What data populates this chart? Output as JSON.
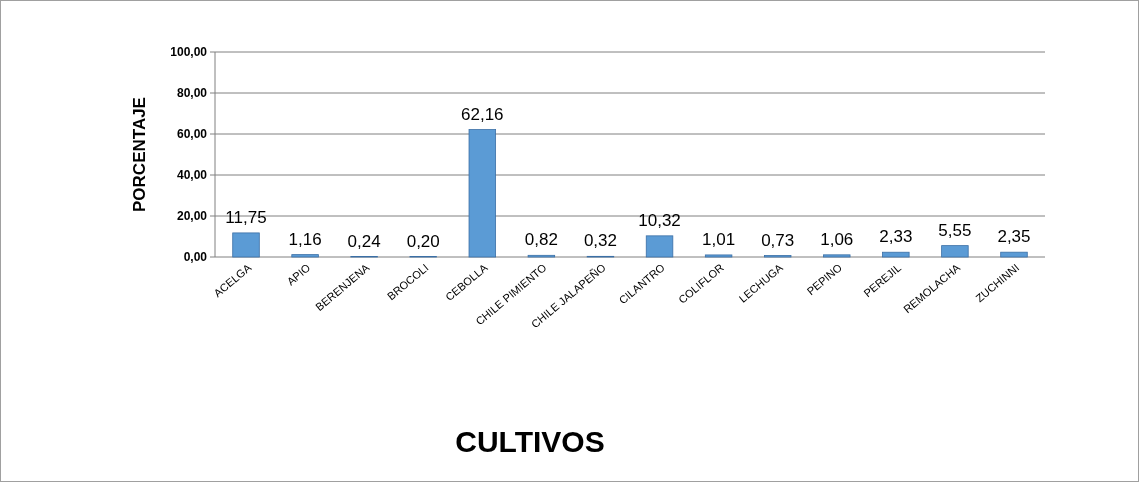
{
  "chart_data": {
    "type": "bar",
    "xlabel": "CULTIVOS",
    "ylabel": "PORCENTAJE",
    "categories": [
      "ACELGA",
      "APIO",
      "BERENJENA",
      "BROCOLI",
      "CEBOLLA",
      "CHILE PIMIENTO",
      "CHILE JALAPEÑO",
      "CILANTRO",
      "COLIFLOR",
      "LECHUGA",
      "PEPINO",
      "PEREJIL",
      "REMOLACHA",
      "ZUCHINNI"
    ],
    "values": [
      11.75,
      1.16,
      0.24,
      0.2,
      62.16,
      0.82,
      0.32,
      10.32,
      1.01,
      0.73,
      1.06,
      2.33,
      5.55,
      2.35
    ],
    "value_labels": [
      "11,75",
      "1,16",
      "0,24",
      "0,20",
      "62,16",
      "0,82",
      "0,32",
      "10,32",
      "1,01",
      "0,73",
      "1,06",
      "2,33",
      "5,55",
      "2,35"
    ],
    "color": "#5b9bd5",
    "ylim": [
      0,
      100
    ],
    "yticks": [
      {
        "value": 0,
        "label": "0,00"
      },
      {
        "value": 20,
        "label": "20,00"
      },
      {
        "value": 40,
        "label": "40,00"
      },
      {
        "value": 60,
        "label": "60,00"
      },
      {
        "value": 80,
        "label": "80,00"
      },
      {
        "value": 100,
        "label": "100,00"
      }
    ],
    "grid": "y"
  }
}
